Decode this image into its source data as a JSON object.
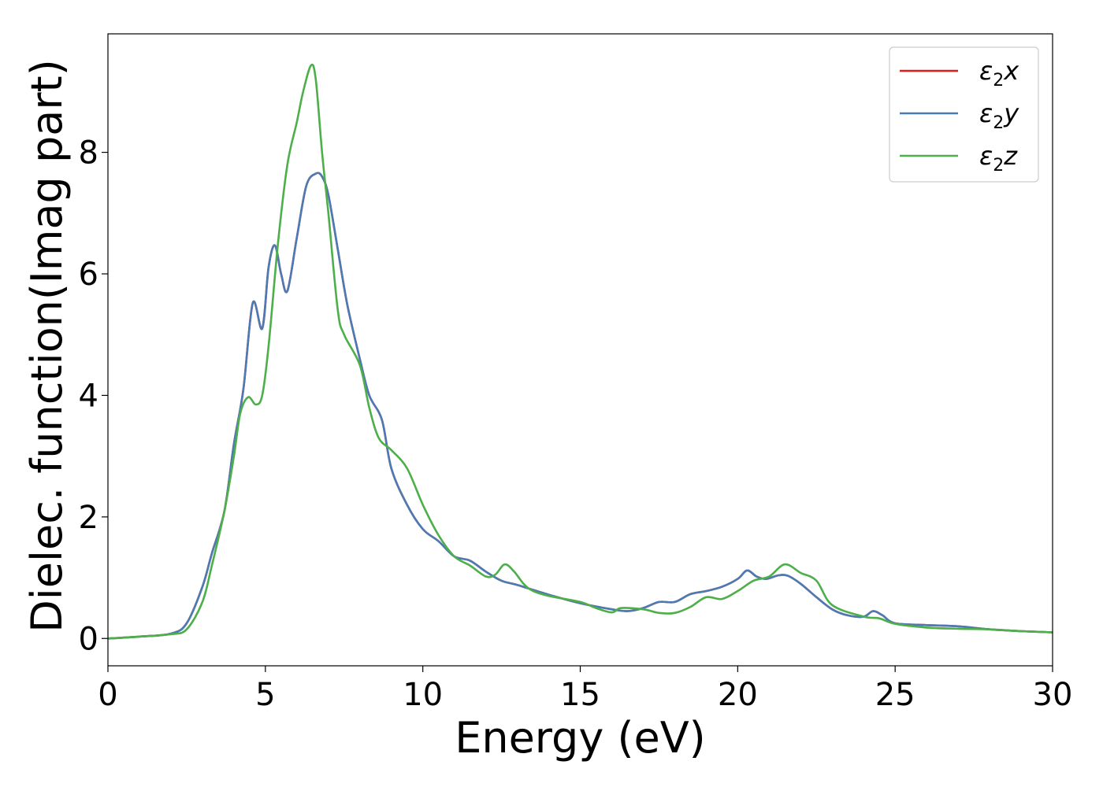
{
  "chart_data": {
    "type": "line",
    "xlabel": "Energy (eV)",
    "ylabel": "Dielec. function(Imag part)",
    "xlim": [
      0,
      30
    ],
    "ylim": [
      -0.45,
      9.95
    ],
    "xticks": [
      0,
      5,
      10,
      15,
      20,
      25,
      30
    ],
    "xtick_labels": [
      "0",
      "5",
      "10",
      "15",
      "20",
      "25",
      "30"
    ],
    "yticks": [
      0,
      2,
      4,
      6,
      8
    ],
    "ytick_labels": [
      "0",
      "2",
      "4",
      "6",
      "8"
    ],
    "grid": false,
    "legend_position": "top-right",
    "series": [
      {
        "name": "ε2x",
        "legend_base": "ε",
        "legend_sub": "2",
        "legend_tail": "x",
        "color": "#e31a1c",
        "x": [
          0,
          1,
          2,
          2.5,
          3,
          3.3,
          3.7,
          4,
          4.3,
          4.6,
          4.9,
          5.1,
          5.3,
          5.5,
          5.7,
          6,
          6.3,
          6.6,
          6.8,
          7,
          7.3,
          7.6,
          8,
          8.3,
          8.7,
          9,
          9.5,
          10,
          10.5,
          11,
          11.5,
          12,
          12.5,
          13,
          14,
          15,
          16,
          16.5,
          17,
          17.5,
          18,
          18.5,
          19,
          19.5,
          20,
          20.3,
          20.6,
          20.9,
          21.3,
          21.6,
          22,
          22.5,
          23,
          23.5,
          24,
          24.3,
          24.6,
          25,
          26,
          27,
          28,
          29,
          30
        ],
        "y": [
          0,
          0.03,
          0.08,
          0.25,
          0.85,
          1.4,
          2.1,
          3.2,
          4.1,
          5.52,
          5.1,
          6.1,
          6.47,
          6.0,
          5.72,
          6.6,
          7.45,
          7.65,
          7.6,
          7.3,
          6.4,
          5.5,
          4.6,
          4.0,
          3.6,
          2.8,
          2.2,
          1.8,
          1.6,
          1.35,
          1.28,
          1.1,
          0.95,
          0.88,
          0.72,
          0.58,
          0.48,
          0.45,
          0.5,
          0.6,
          0.6,
          0.73,
          0.78,
          0.85,
          0.98,
          1.12,
          1.02,
          0.98,
          1.04,
          1.03,
          0.9,
          0.68,
          0.48,
          0.38,
          0.36,
          0.45,
          0.38,
          0.25,
          0.22,
          0.2,
          0.15,
          0.12,
          0.1
        ]
      },
      {
        "name": "ε2y",
        "legend_base": "ε",
        "legend_sub": "2",
        "legend_tail": "y",
        "color": "#4a7bb5",
        "x": [
          0,
          1,
          2,
          2.5,
          3,
          3.3,
          3.7,
          4,
          4.3,
          4.6,
          4.9,
          5.1,
          5.3,
          5.5,
          5.7,
          6,
          6.3,
          6.6,
          6.8,
          7,
          7.3,
          7.6,
          8,
          8.3,
          8.7,
          9,
          9.5,
          10,
          10.5,
          11,
          11.5,
          12,
          12.5,
          13,
          14,
          15,
          16,
          16.5,
          17,
          17.5,
          18,
          18.5,
          19,
          19.5,
          20,
          20.3,
          20.6,
          20.9,
          21.3,
          21.6,
          22,
          22.5,
          23,
          23.5,
          24,
          24.3,
          24.6,
          25,
          26,
          27,
          28,
          29,
          30
        ],
        "y": [
          0,
          0.03,
          0.08,
          0.25,
          0.85,
          1.4,
          2.1,
          3.2,
          4.1,
          5.52,
          5.1,
          6.1,
          6.47,
          6.0,
          5.72,
          6.6,
          7.45,
          7.65,
          7.6,
          7.3,
          6.4,
          5.5,
          4.6,
          4.0,
          3.6,
          2.8,
          2.2,
          1.8,
          1.6,
          1.35,
          1.28,
          1.1,
          0.95,
          0.88,
          0.72,
          0.58,
          0.48,
          0.45,
          0.5,
          0.6,
          0.6,
          0.73,
          0.78,
          0.85,
          0.98,
          1.12,
          1.02,
          0.98,
          1.04,
          1.03,
          0.9,
          0.68,
          0.48,
          0.38,
          0.36,
          0.45,
          0.38,
          0.25,
          0.22,
          0.2,
          0.15,
          0.12,
          0.1
        ]
      },
      {
        "name": "ε2z",
        "legend_base": "ε",
        "legend_sub": "2",
        "legend_tail": "z",
        "color": "#4daf4a",
        "x": [
          0,
          1,
          2,
          2.5,
          3,
          3.3,
          3.7,
          4,
          4.2,
          4.45,
          4.7,
          4.9,
          5.1,
          5.4,
          5.7,
          6,
          6.2,
          6.45,
          6.6,
          6.8,
          7,
          7.3,
          7.5,
          8,
          8.3,
          8.6,
          9,
          9.5,
          10,
          10.5,
          11,
          11.5,
          12,
          12.3,
          12.6,
          12.9,
          13.2,
          13.5,
          14,
          15,
          15.5,
          16,
          16.3,
          17,
          17.5,
          18,
          18.5,
          19,
          19.5,
          20,
          20.5,
          21,
          21.5,
          22,
          22.5,
          23,
          24,
          24.5,
          25,
          26,
          27,
          28,
          29,
          30
        ],
        "y": [
          0,
          0.03,
          0.07,
          0.15,
          0.6,
          1.2,
          2.1,
          3.0,
          3.7,
          3.97,
          3.85,
          4.0,
          4.8,
          6.5,
          7.8,
          8.5,
          9.0,
          9.43,
          9.2,
          8.0,
          7.0,
          5.4,
          5.0,
          4.5,
          3.8,
          3.3,
          3.1,
          2.8,
          2.2,
          1.7,
          1.35,
          1.2,
          1.02,
          1.05,
          1.22,
          1.1,
          0.9,
          0.78,
          0.7,
          0.6,
          0.5,
          0.43,
          0.5,
          0.48,
          0.42,
          0.42,
          0.52,
          0.68,
          0.65,
          0.78,
          0.95,
          1.02,
          1.22,
          1.08,
          0.95,
          0.55,
          0.36,
          0.33,
          0.24,
          0.18,
          0.16,
          0.15,
          0.12,
          0.1
        ]
      }
    ]
  }
}
